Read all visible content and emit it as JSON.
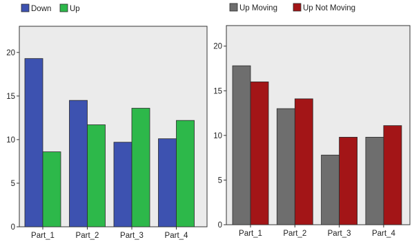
{
  "chart_data": [
    {
      "type": "bar",
      "categories": [
        "Part_1",
        "Part_2",
        "Part_3",
        "Part_4"
      ],
      "series": [
        {
          "name": "Down",
          "color": "#3d52b0",
          "values": [
            19.3,
            14.5,
            9.7,
            10.1
          ]
        },
        {
          "name": "Up",
          "color": "#2db84a",
          "values": [
            8.6,
            11.7,
            13.6,
            12.2
          ]
        }
      ],
      "yticks": [
        "0",
        "5",
        "10",
        "15",
        "20"
      ],
      "ylim": [
        0,
        23
      ],
      "legend": "top-left",
      "grid": false,
      "plot_background": "#ebebeb"
    },
    {
      "type": "bar",
      "categories": [
        "Part_1",
        "Part_2",
        "Part_3",
        "Part_4"
      ],
      "series": [
        {
          "name": "Up Moving",
          "color": "#6e6e6e",
          "values": [
            17.8,
            13.0,
            7.8,
            9.8
          ]
        },
        {
          "name": "Up Not Moving",
          "color": "#a31517",
          "values": [
            16.0,
            14.1,
            9.8,
            11.1
          ]
        }
      ],
      "yticks": [
        "0",
        "5",
        "10",
        "15",
        "20"
      ],
      "ylim": [
        0,
        22.3
      ],
      "legend": "top-left",
      "grid": false,
      "plot_background": "#ebebeb"
    }
  ]
}
